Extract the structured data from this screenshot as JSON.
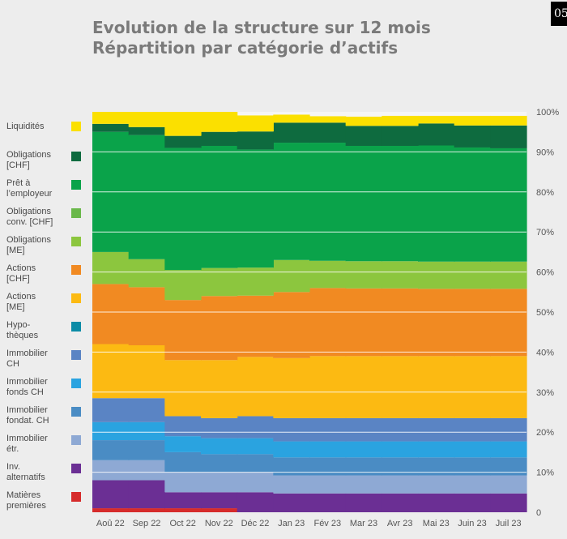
{
  "page_number": "05",
  "title_line1": "Evolution de la structure sur 12 mois",
  "title_line2": "Répartition par catégorie d’actifs",
  "chart_data": {
    "type": "area",
    "stacked": true,
    "categories": [
      "Aoû 22",
      "Sep 22",
      "Oct 22",
      "Nov 22",
      "Déc 22",
      "Jan 23",
      "Fév 23",
      "Mar 23",
      "Avr 23",
      "Mai 23",
      "Juin 23",
      "Juil 23"
    ],
    "y_ticks": [
      "0",
      "10%",
      "20%",
      "30%",
      "40%",
      "50%",
      "60%",
      "70%",
      "80%",
      "90%",
      "100%"
    ],
    "ylim": [
      0,
      100
    ],
    "grid": true,
    "series": [
      {
        "name": "Matières premières",
        "color": "#d62b2b",
        "values": [
          1.0,
          1.0,
          1.0,
          1.0,
          0.0,
          0.0,
          0.0,
          0.0,
          0.0,
          0.0,
          0.0,
          0.0
        ]
      },
      {
        "name": "Inv. alternatifs",
        "color": "#6b2f94",
        "values": [
          7.0,
          7.0,
          4.0,
          4.0,
          5.0,
          4.7,
          4.7,
          4.7,
          4.7,
          4.7,
          4.7,
          4.7
        ]
      },
      {
        "name": "Immobilier étr.",
        "color": "#8ea9d4",
        "values": [
          5.0,
          5.0,
          5.0,
          5.0,
          5.0,
          4.5,
          4.5,
          4.5,
          4.5,
          4.5,
          4.5,
          4.5
        ]
      },
      {
        "name": "Immobilier fondat. CH",
        "color": "#4a8cc4",
        "values": [
          5.0,
          5.0,
          5.0,
          4.5,
          4.5,
          4.5,
          4.5,
          4.5,
          4.5,
          4.5,
          4.5,
          4.5
        ]
      },
      {
        "name": "Immobilier fonds CH",
        "color": "#2aa3e0",
        "values": [
          4.5,
          4.5,
          4.0,
          4.0,
          4.0,
          4.0,
          4.0,
          4.0,
          4.0,
          4.0,
          4.0,
          4.0
        ]
      },
      {
        "name": "Hypothèques",
        "color": "#0b8ba6",
        "values": [
          0.0,
          0.0,
          0.0,
          0.0,
          0.0,
          0.0,
          0.0,
          0.0,
          0.0,
          0.0,
          0.0,
          0.0
        ]
      },
      {
        "name": "Immobilier CH",
        "color": "#5a84c4",
        "values": [
          6.0,
          6.0,
          5.0,
          5.0,
          5.5,
          5.8,
          5.8,
          5.8,
          5.8,
          5.8,
          5.8,
          5.8
        ]
      },
      {
        "name": "Actions [ME]",
        "color": "#fcba12",
        "values": [
          13.5,
          13.2,
          14.0,
          14.5,
          14.8,
          15.0,
          15.5,
          15.5,
          15.5,
          15.5,
          15.5,
          15.5
        ]
      },
      {
        "name": "Actions [CHF]",
        "color": "#f18a22",
        "values": [
          15.0,
          14.5,
          15.0,
          16.0,
          15.3,
          16.5,
          17.0,
          16.9,
          16.9,
          16.8,
          16.8,
          16.8
        ]
      },
      {
        "name": "Obligations [ME]",
        "color": "#8cc63e",
        "values": [
          8.0,
          7.0,
          7.5,
          7.0,
          7.0,
          8.0,
          6.8,
          6.8,
          6.8,
          6.8,
          6.8,
          6.8
        ]
      },
      {
        "name": "Obligations conv. [CHF]",
        "color": "#6ab84a",
        "values": [
          0.0,
          0.0,
          0.0,
          0.0,
          0.0,
          0.0,
          0.0,
          0.0,
          0.0,
          0.0,
          0.0,
          0.0
        ]
      },
      {
        "name": "Prêt à l’employeur",
        "color": "#0aa34a",
        "values": [
          30.0,
          31.0,
          30.5,
          30.5,
          29.5,
          29.3,
          29.5,
          28.8,
          28.8,
          29.0,
          28.5,
          28.3
        ]
      },
      {
        "name": "Obligations [CHF]",
        "color": "#0e6b3f",
        "values": [
          2.0,
          2.0,
          3.0,
          3.5,
          4.5,
          5.0,
          5.0,
          5.0,
          5.0,
          5.5,
          5.5,
          5.7
        ]
      },
      {
        "name": "Liquidités",
        "color": "#fbe000",
        "values": [
          3.0,
          3.8,
          6.0,
          5.0,
          4.0,
          2.0,
          1.6,
          2.3,
          2.5,
          1.9,
          2.4,
          2.4
        ]
      }
    ]
  },
  "legend": [
    {
      "label": "Liquidités",
      "color": "#fbe000"
    },
    {
      "label": "Obligations [CHF]",
      "color": "#0e6b3f"
    },
    {
      "label": "Prêt à l’employeur",
      "color": "#0aa34a"
    },
    {
      "label": "Obligations conv. [CHF]",
      "color": "#6ab84a"
    },
    {
      "label": "Obligations [ME]",
      "color": "#8cc63e"
    },
    {
      "label": "Actions [CHF]",
      "color": "#f18a22"
    },
    {
      "label": "Actions [ME]",
      "color": "#fcba12"
    },
    {
      "label": "Hypo-thèques",
      "color": "#0b8ba6"
    },
    {
      "label": "Immobilier CH",
      "color": "#5a84c4"
    },
    {
      "label": "Immobilier fonds CH",
      "color": "#2aa3e0"
    },
    {
      "label": "Immobilier fondat. CH",
      "color": "#4a8cc4"
    },
    {
      "label": "Immobilier étr.",
      "color": "#8ea9d4"
    },
    {
      "label": "Inv. alternatifs",
      "color": "#6b2f94"
    },
    {
      "label": "Matières premières",
      "color": "#d62b2b"
    }
  ]
}
